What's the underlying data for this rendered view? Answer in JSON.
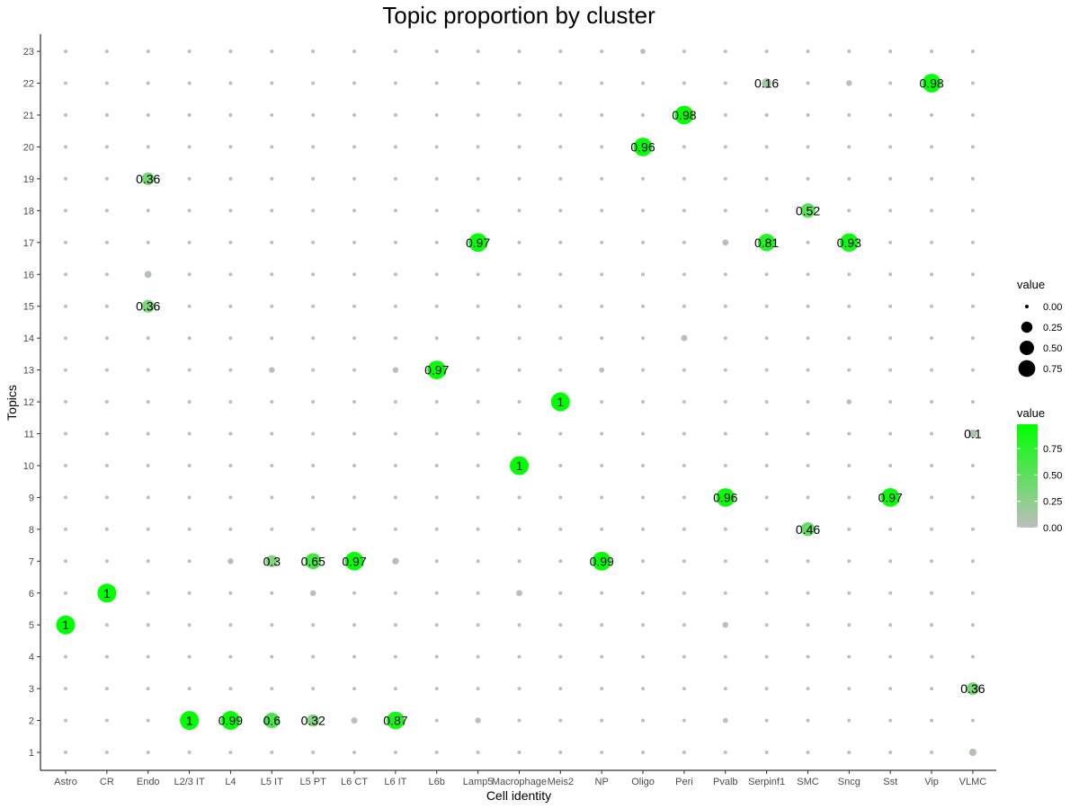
{
  "chart_data": {
    "type": "scatter",
    "title": "Topic proportion by cluster",
    "xlabel": "Cell identity",
    "ylabel": "Topics",
    "categories": [
      "Astro",
      "CR",
      "Endo",
      "L2/3 IT",
      "L4",
      "L5 IT",
      "L5 PT",
      "L6 CT",
      "L6 IT",
      "L6b",
      "Lamp5",
      "Macrophage",
      "Meis2",
      "NP",
      "Oligo",
      "Peri",
      "Pvalb",
      "Serpinf1",
      "SMC",
      "Sncg",
      "Sst",
      "Vip",
      "VLMC"
    ],
    "topics": [
      1,
      2,
      3,
      4,
      5,
      6,
      7,
      8,
      9,
      10,
      11,
      12,
      13,
      14,
      15,
      16,
      17,
      18,
      19,
      20,
      21,
      22,
      23
    ],
    "labeled_points": [
      {
        "x": "Astro",
        "y": 5,
        "value": 1,
        "label": "1"
      },
      {
        "x": "CR",
        "y": 6,
        "value": 1,
        "label": "1"
      },
      {
        "x": "Endo",
        "y": 19,
        "value": 0.36,
        "label": "0.36"
      },
      {
        "x": "Endo",
        "y": 15,
        "value": 0.36,
        "label": "0.36"
      },
      {
        "x": "L2/3 IT",
        "y": 2,
        "value": 1,
        "label": "1"
      },
      {
        "x": "L4",
        "y": 2,
        "value": 0.99,
        "label": "0.99"
      },
      {
        "x": "L5 IT",
        "y": 7,
        "value": 0.3,
        "label": "0.3"
      },
      {
        "x": "L5 IT",
        "y": 2,
        "value": 0.6,
        "label": "0.6"
      },
      {
        "x": "L5 PT",
        "y": 7,
        "value": 0.65,
        "label": "0.65"
      },
      {
        "x": "L5 PT",
        "y": 2,
        "value": 0.32,
        "label": "0.32"
      },
      {
        "x": "L6 CT",
        "y": 7,
        "value": 0.97,
        "label": "0.97"
      },
      {
        "x": "L6 IT",
        "y": 2,
        "value": 0.87,
        "label": "0.87"
      },
      {
        "x": "L6b",
        "y": 13,
        "value": 0.97,
        "label": "0.97"
      },
      {
        "x": "Lamp5",
        "y": 17,
        "value": 0.97,
        "label": "0.97"
      },
      {
        "x": "Macrophage",
        "y": 10,
        "value": 1,
        "label": "1"
      },
      {
        "x": "Meis2",
        "y": 12,
        "value": 1,
        "label": "1"
      },
      {
        "x": "NP",
        "y": 7,
        "value": 0.99,
        "label": "0.99"
      },
      {
        "x": "Oligo",
        "y": 20,
        "value": 0.96,
        "label": "0.96"
      },
      {
        "x": "Peri",
        "y": 21,
        "value": 0.98,
        "label": "0.98"
      },
      {
        "x": "Pvalb",
        "y": 9,
        "value": 0.96,
        "label": "0.96"
      },
      {
        "x": "Serpinf1",
        "y": 22,
        "value": 0.16,
        "label": "0.16"
      },
      {
        "x": "Serpinf1",
        "y": 17,
        "value": 0.81,
        "label": "0.81"
      },
      {
        "x": "SMC",
        "y": 18,
        "value": 0.52,
        "label": "0.52"
      },
      {
        "x": "SMC",
        "y": 8,
        "value": 0.46,
        "label": "0.46"
      },
      {
        "x": "Sncg",
        "y": 17,
        "value": 0.93,
        "label": "0.93"
      },
      {
        "x": "Sst",
        "y": 9,
        "value": 0.97,
        "label": "0.97"
      },
      {
        "x": "Vip",
        "y": 22,
        "value": 0.98,
        "label": "0.98"
      },
      {
        "x": "VLMC",
        "y": 11,
        "value": 0.1,
        "label": "0.1"
      },
      {
        "x": "VLMC",
        "y": 3,
        "value": 0.36,
        "label": "0.36"
      }
    ],
    "unlabeled_points": [
      {
        "x": "Endo",
        "y": 16,
        "value": 0.05
      },
      {
        "x": "L4",
        "y": 7,
        "value": 0.02
      },
      {
        "x": "L5 IT",
        "y": 13,
        "value": 0.02
      },
      {
        "x": "L5 PT",
        "y": 6,
        "value": 0.02
      },
      {
        "x": "L6 CT",
        "y": 2,
        "value": 0.03
      },
      {
        "x": "L6 IT",
        "y": 13,
        "value": 0.02
      },
      {
        "x": "L6 IT",
        "y": 7,
        "value": 0.04
      },
      {
        "x": "Lamp5",
        "y": 2,
        "value": 0.02
      },
      {
        "x": "Macrophage",
        "y": 6,
        "value": 0.03
      },
      {
        "x": "NP",
        "y": 13,
        "value": 0.01
      },
      {
        "x": "Oligo",
        "y": 23,
        "value": 0.01
      },
      {
        "x": "Peri",
        "y": 14,
        "value": 0.03
      },
      {
        "x": "Pvalb",
        "y": 17,
        "value": 0.03
      },
      {
        "x": "Pvalb",
        "y": 5,
        "value": 0.02
      },
      {
        "x": "Pvalb",
        "y": 2,
        "value": 0.01
      },
      {
        "x": "Sncg",
        "y": 22,
        "value": 0.02
      },
      {
        "x": "Sncg",
        "y": 12,
        "value": 0.01
      },
      {
        "x": "VLMC",
        "y": 1,
        "value": 0.06
      }
    ],
    "xlim": [
      "Astro",
      "VLMC"
    ],
    "ylim": [
      1,
      23
    ],
    "grid": false,
    "size_legend": {
      "title": "value",
      "breaks": [
        0.0,
        0.25,
        0.5,
        0.75
      ],
      "labels": [
        "0.00",
        "0.25",
        "0.50",
        "0.75"
      ]
    },
    "color_legend": {
      "title": "value",
      "breaks": [
        0.0,
        0.25,
        0.5,
        0.75
      ],
      "labels": [
        "0.00",
        "0.25",
        "0.50",
        "0.75"
      ],
      "low_color": "#bebebe",
      "high_color": "#00ff00"
    },
    "legend_position": "right"
  }
}
